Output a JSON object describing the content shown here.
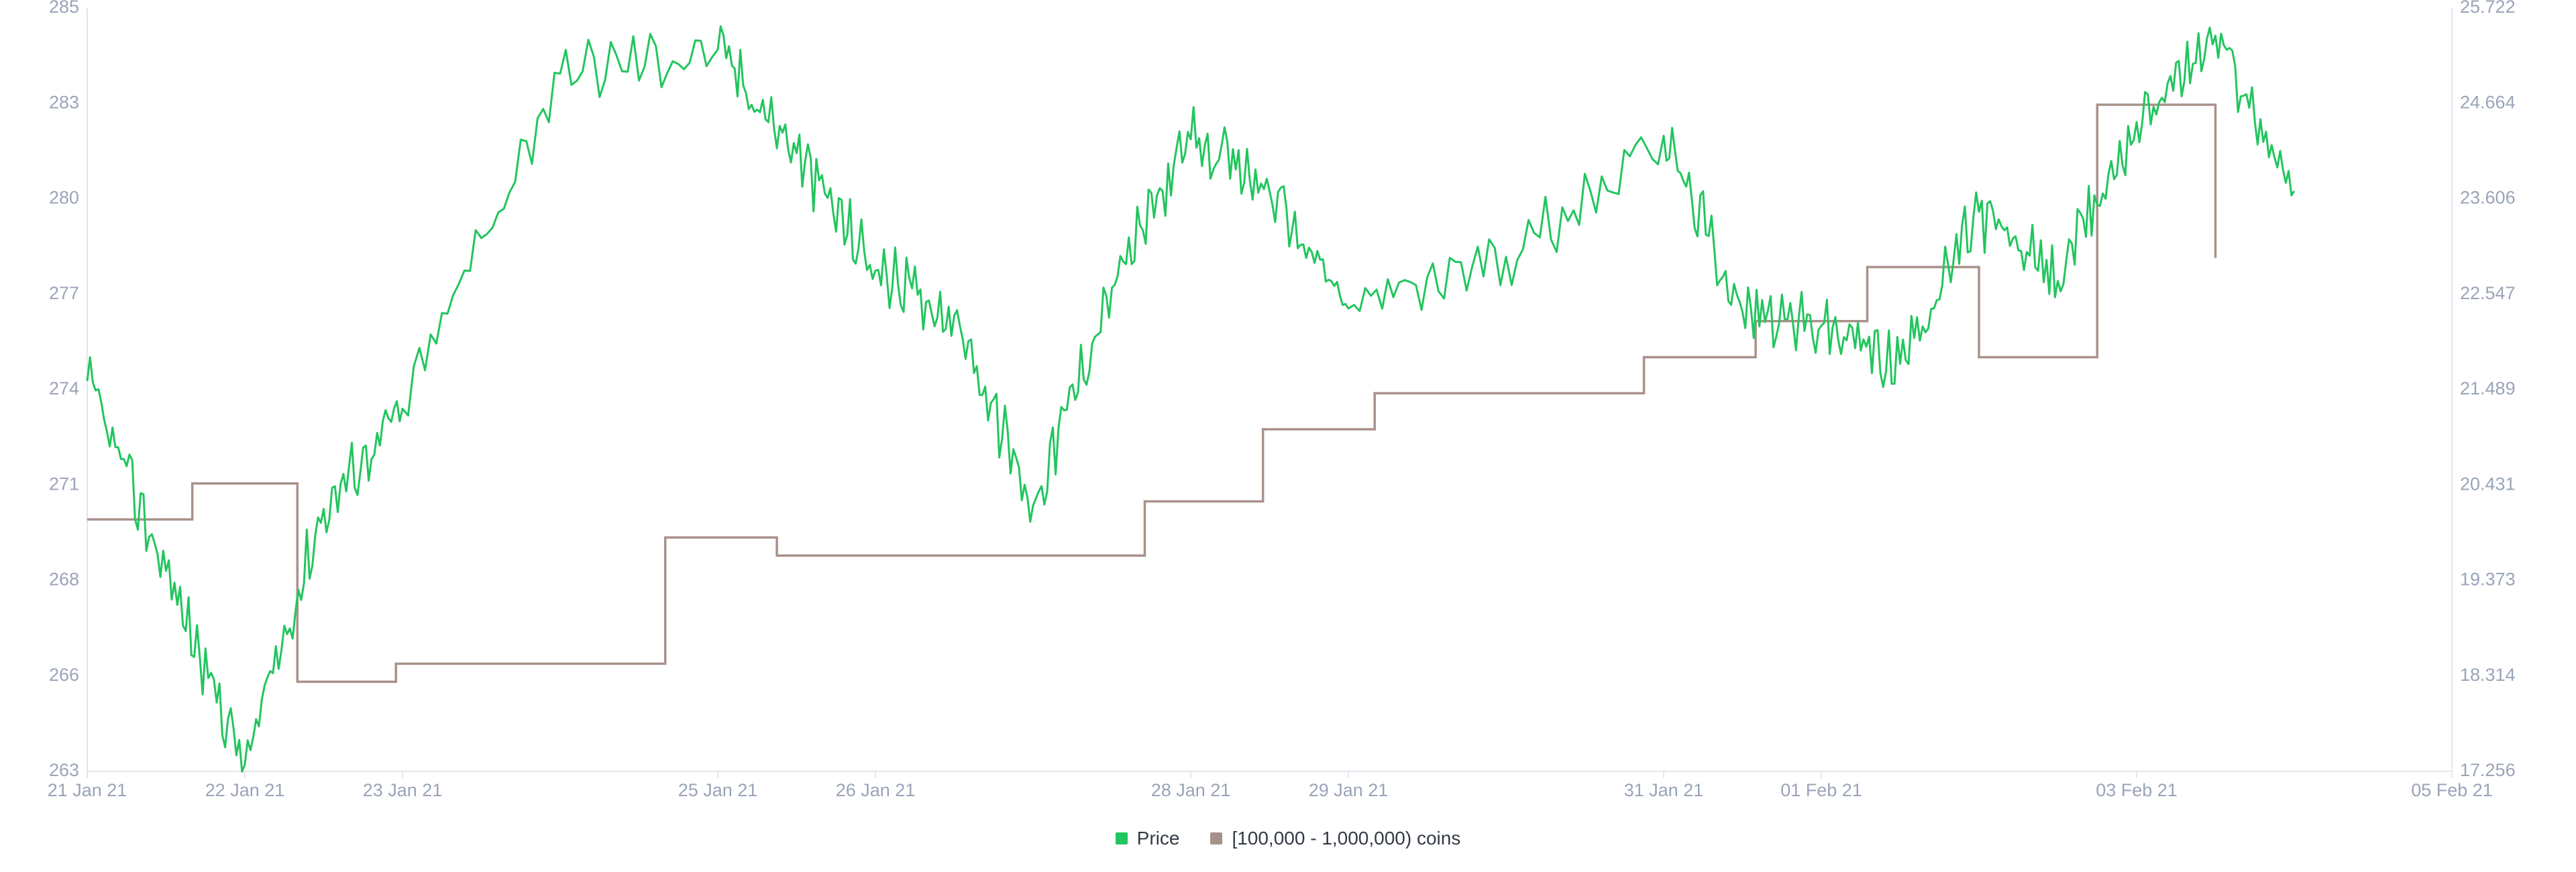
{
  "chart_data": {
    "type": "line",
    "title": "",
    "xlabel": "",
    "ylabel": "",
    "x_ticks": [
      "21 Jan 21",
      "22 Jan 21",
      "23 Jan 21",
      "25 Jan 21",
      "26 Jan 21",
      "28 Jan 21",
      "29 Jan 21",
      "31 Jan 21",
      "01 Feb 21",
      "03 Feb 21",
      "05 Feb 21"
    ],
    "y_left_ticks": [
      "263",
      "266",
      "268",
      "271",
      "274",
      "277",
      "280",
      "283",
      "285"
    ],
    "y_left_range": [
      263.3,
      285.4
    ],
    "y_right_ticks": [
      "17.256",
      "18.314",
      "19.373",
      "20.431",
      "21.489",
      "22.547",
      "23.606",
      "24.664",
      "25.722"
    ],
    "y_right_range": [
      17.256,
      25.722
    ],
    "grid": false,
    "legend_position": "bottom-center",
    "series": [
      {
        "name": "Price",
        "axis": "left",
        "color": "#22c55e",
        "x": [
          "21 Jan 21",
          "21 Jan 21 12:00",
          "22 Jan 21",
          "22 Jan 21 12:00",
          "23 Jan 21",
          "24 Jan 21",
          "25 Jan 21",
          "25 Jan 21 12:00",
          "26 Jan 21",
          "26 Jan 21 12:00",
          "27 Jan 21",
          "27 Jan 21 12:00",
          "28 Jan 21",
          "28 Jan 21 12:00",
          "29 Jan 21",
          "30 Jan 21",
          "31 Jan 21",
          "31 Jan 21 12:00",
          "01 Feb 21",
          "01 Feb 21 12:00",
          "02 Feb 21",
          "02 Feb 21 12:00",
          "03 Feb 21",
          "03 Feb 21 12:00",
          "04 Feb 21"
        ],
        "values": [
          274.6,
          269.1,
          263.5,
          270.9,
          273.8,
          283.5,
          284.2,
          281.2,
          277.8,
          276.5,
          271.0,
          277.3,
          281.6,
          280.1,
          276.7,
          278.2,
          281.7,
          276.6,
          276.2,
          275.1,
          279.5,
          277.5,
          282.1,
          284.6,
          280.1
        ]
      },
      {
        "name": "[100,000  - 1,000,000) coins",
        "axis": "right",
        "color": "#a8918a",
        "step": true,
        "x": [
          "21 Jan 21",
          "21 Jan 21 16:00",
          "22 Jan 21 08:00",
          "22 Jan 21 23:00",
          "24 Jan 21 16:00",
          "25 Jan 21 09:00",
          "27 Jan 21 17:00",
          "28 Jan 21 11:00",
          "29 Jan 21 04:00",
          "30 Jan 21 21:00",
          "31 Jan 21 14:00",
          "01 Feb 21 07:00",
          "02 Feb 21 00:00",
          "02 Feb 21 18:00",
          "03 Feb 21 12:00"
        ],
        "values": [
          20.05,
          20.45,
          18.25,
          18.45,
          19.85,
          19.65,
          20.25,
          21.05,
          21.45,
          21.85,
          22.25,
          22.85,
          21.85,
          24.65,
          22.95
        ]
      }
    ]
  }
}
